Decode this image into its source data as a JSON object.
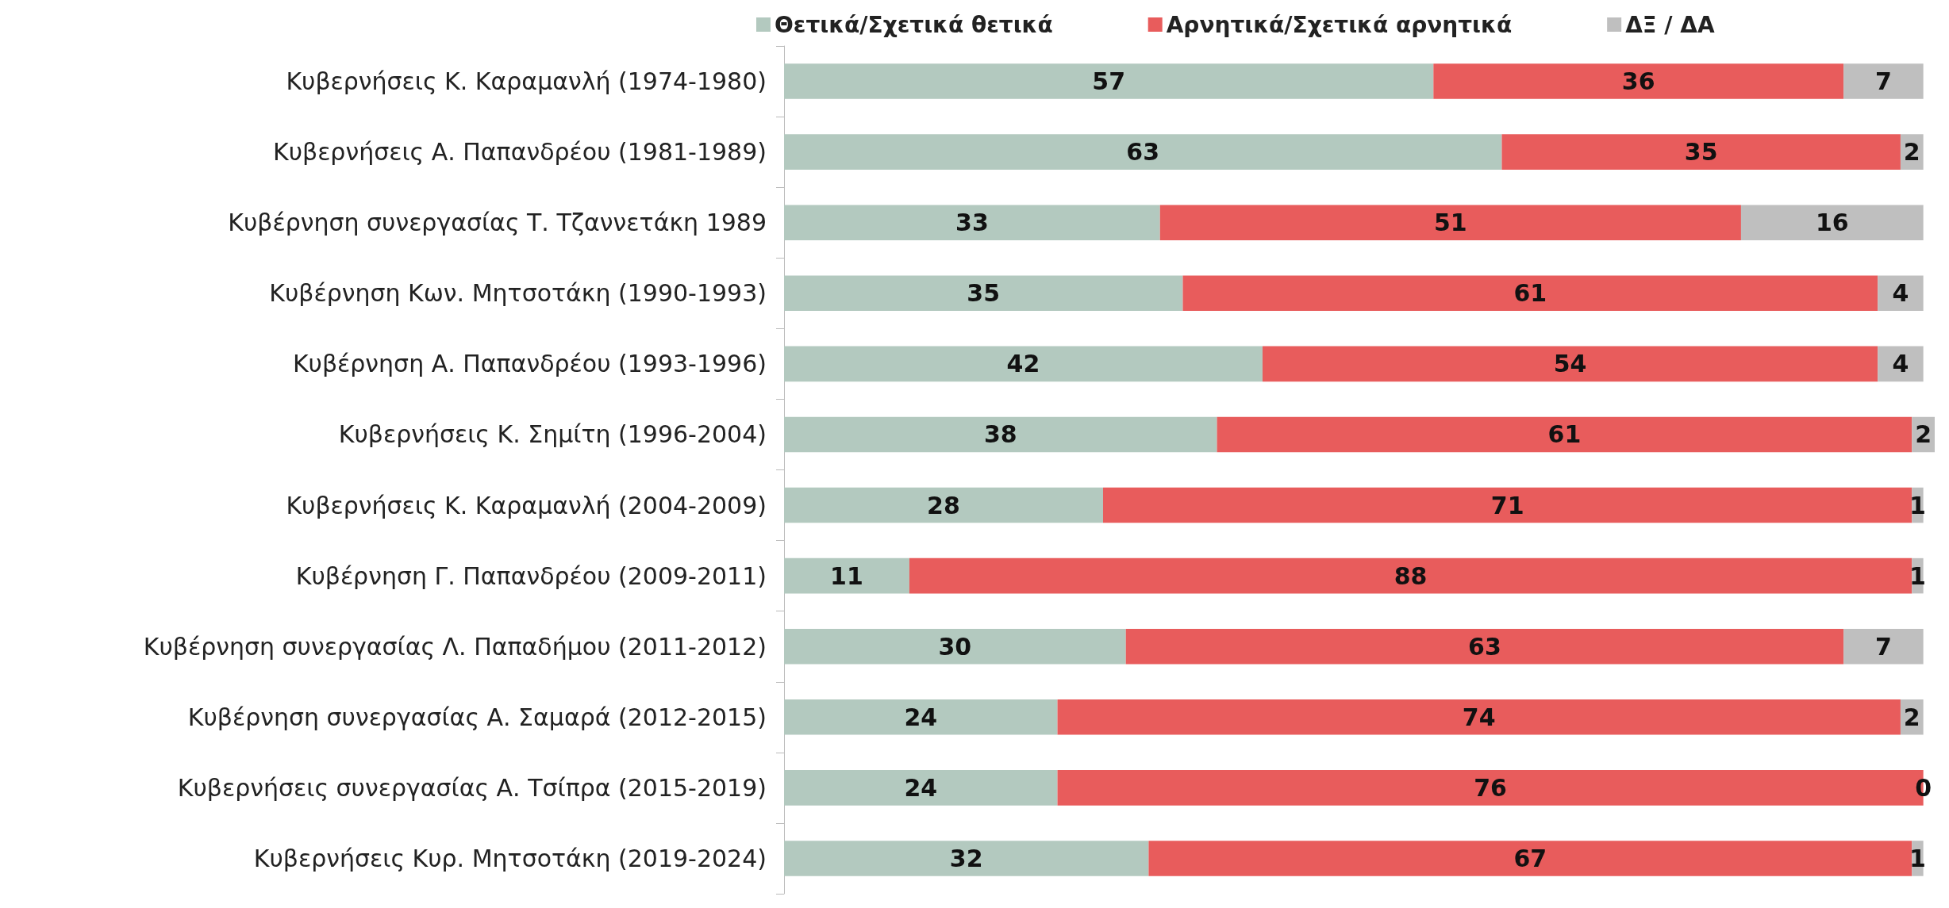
{
  "chart_data": {
    "type": "bar",
    "orientation": "horizontal",
    "stacked": true,
    "data_labels": true,
    "legend": "top",
    "grid": false,
    "categories": [
      "Κυβερνήσεις Κ. Καραμανλή (1974-1980)",
      "Κυβερνήσεις Α. Παπανδρέου (1981-1989)",
      "Κυβέρνηση συνεργασίας Τ. Τζαννετάκη 1989",
      "Κυβέρνηση Κων. Μητσοτάκη (1990-1993)",
      "Κυβέρνηση Α. Παπανδρέου (1993-1996)",
      "Κυβερνήσεις Κ. Σημίτη (1996-2004)",
      "Κυβερνήσεις Κ. Καραμανλή (2004-2009)",
      "Κυβέρνηση Γ. Παπανδρέου (2009-2011)",
      "Κυβέρνηση συνεργασίας Λ. Παπαδήμου (2011-2012)",
      "Κυβέρνηση συνεργασίας Α. Σαμαρά (2012-2015)",
      "Κυβερνήσεις συνεργασίας Α. Τσίπρα (2015-2019)",
      "Κυβερνήσεις Κυρ. Μητσοτάκη (2019-2024)"
    ],
    "series": [
      {
        "name": "Θετικά/Σχετικά θετικά",
        "color": "#b3c9bf",
        "values": [
          57,
          63,
          33,
          35,
          42,
          38,
          28,
          11,
          30,
          24,
          24,
          32
        ]
      },
      {
        "name": "Αρνητικά/Σχετικά αρνητικά",
        "color": "#e85c5c",
        "values": [
          36,
          35,
          51,
          61,
          54,
          61,
          71,
          88,
          63,
          74,
          76,
          67
        ]
      },
      {
        "name": "ΔΞ / ΔΑ",
        "color": "#bfbfbf",
        "values": [
          7,
          2,
          16,
          4,
          4,
          2,
          1,
          1,
          7,
          2,
          0,
          1
        ]
      }
    ]
  }
}
